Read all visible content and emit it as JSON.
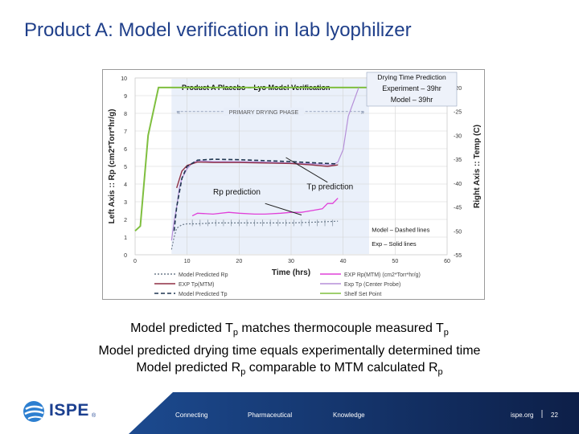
{
  "slide": {
    "title": "Product A:  Model verification in lab lyophilizer"
  },
  "captions": [
    {
      "pre": "Model predicted T",
      "sub": "p",
      "post": " matches thermocouple measured T",
      "sub2": "p"
    },
    {
      "pre": "Model predicted drying time equals experimentally determined time",
      "sub": "",
      "post": "",
      "sub2": ""
    },
    {
      "pre": "Model predicted R",
      "sub": "p",
      "post": "  comparable to MTM calculated R",
      "sub2": "p"
    }
  ],
  "footer": {
    "logo_text": "ISPE",
    "logo_mark": "®",
    "words": [
      "Connecting",
      "Pharmaceutical",
      "Knowledge"
    ],
    "site": "ispe.org",
    "page": "22"
  },
  "colors": {
    "title": "#1f3f8a",
    "plot_bg": "#e8eef9",
    "shelf": "#7fbf3f",
    "exp_tp": "#8f2f44",
    "model_tp": "#1f3550",
    "model_rp": "#6d7c8c",
    "exp_rp": "#e040d8",
    "band_left": "#1c4a8f",
    "band_right": "#0d1f48"
  },
  "chart_data": {
    "type": "line",
    "title": "Product A Placebo – Lyo Model Verification",
    "xlabel": "Time (hrs)",
    "ylabel_left": "Left Axis :: Rp (cm2*Torr*hr/g)",
    "ylabel_right": "Right Axis :: Temp (C)",
    "x_ticks": [
      0,
      10,
      20,
      30,
      40,
      50,
      60
    ],
    "xlim": [
      0,
      60
    ],
    "y_left_ticks": [
      0,
      1,
      2,
      3,
      4,
      5,
      6,
      7,
      8,
      9,
      10
    ],
    "ylim_left": [
      0,
      10
    ],
    "y_right_ticks": [
      -20,
      -25,
      -30,
      -35,
      -40,
      -45,
      -50,
      -55
    ],
    "ylim_right": [
      -55,
      -18
    ],
    "grid": true,
    "callout_box": {
      "line1": "Drying Time Prediction",
      "line2": "Experiment – 39hr",
      "line3": "Model – 39hr"
    },
    "annotations": {
      "phase": "PRIMARY DRYING PHASE",
      "rp_prediction": "Rp prediction",
      "tp_prediction": "Tp prediction",
      "legend_note_1": "Model – Dashed lines",
      "legend_note_2": "Exp – Solid lines"
    },
    "legend": [
      {
        "name": "Model Predicted Rp",
        "key": "model_rp"
      },
      {
        "name": "EXP Rp(MTM) (cm2*Torr*hr/g)",
        "key": "exp_rp"
      },
      {
        "name": "EXP Tp(MTM)",
        "key": "exp_tp"
      },
      {
        "name": "Exp Tp (Center Probe)",
        "key": "exp_probe"
      },
      {
        "name": "Model Predicted Tp",
        "key": "model_tp"
      },
      {
        "name": "Shelf Set Point",
        "key": "shelf"
      }
    ],
    "series": {
      "shelf": {
        "axis": "right",
        "x": [
          0,
          1,
          2.5,
          4.5,
          39,
          40,
          60
        ],
        "y": [
          -50,
          -49,
          -30,
          -20,
          -20,
          -20,
          -20
        ]
      },
      "exp_probe": {
        "axis": "right",
        "x": [
          7,
          7.5,
          8,
          8.5,
          9,
          10,
          11,
          12,
          15,
          20,
          25,
          30,
          35,
          38,
          39,
          40,
          41,
          43
        ],
        "y": [
          -52,
          -48,
          -45,
          -41,
          -39,
          -37,
          -35.8,
          -35.3,
          -35.5,
          -35.5,
          -35.6,
          -35.8,
          -36,
          -36.2,
          -35.6,
          -33,
          -26,
          -20
        ]
      },
      "exp_tp": {
        "axis": "right",
        "x": [
          8,
          9,
          10,
          12,
          15,
          20,
          25,
          30,
          34,
          37,
          39
        ],
        "y": [
          -41,
          -37.5,
          -36.3,
          -35.6,
          -35.7,
          -35.7,
          -35.8,
          -35.9,
          -36.2,
          -36.5,
          -36.2
        ]
      },
      "model_tp": {
        "axis": "right",
        "x": [
          7.5,
          8,
          9,
          10,
          12,
          15,
          20,
          25,
          30,
          35,
          39
        ],
        "y": [
          -50,
          -45,
          -39,
          -36.5,
          -35.2,
          -35,
          -35.1,
          -35.3,
          -35.5,
          -35.8,
          -36
        ]
      },
      "model_rp": {
        "axis": "left",
        "x": [
          7,
          7.5,
          8,
          9,
          10,
          12,
          15,
          20,
          25,
          30,
          35,
          39
        ],
        "y": [
          0.3,
          1.0,
          1.5,
          1.7,
          1.75,
          1.75,
          1.8,
          1.8,
          1.8,
          1.8,
          1.85,
          1.9
        ]
      },
      "exp_rp": {
        "axis": "left",
        "x": [
          11,
          12,
          15,
          18,
          20,
          23,
          25,
          28,
          30,
          32,
          34,
          36,
          37,
          38,
          39
        ],
        "y": [
          2.2,
          2.35,
          2.3,
          2.4,
          2.35,
          2.3,
          2.3,
          2.35,
          2.4,
          2.4,
          2.5,
          2.6,
          2.9,
          2.9,
          3.2
        ]
      }
    }
  }
}
